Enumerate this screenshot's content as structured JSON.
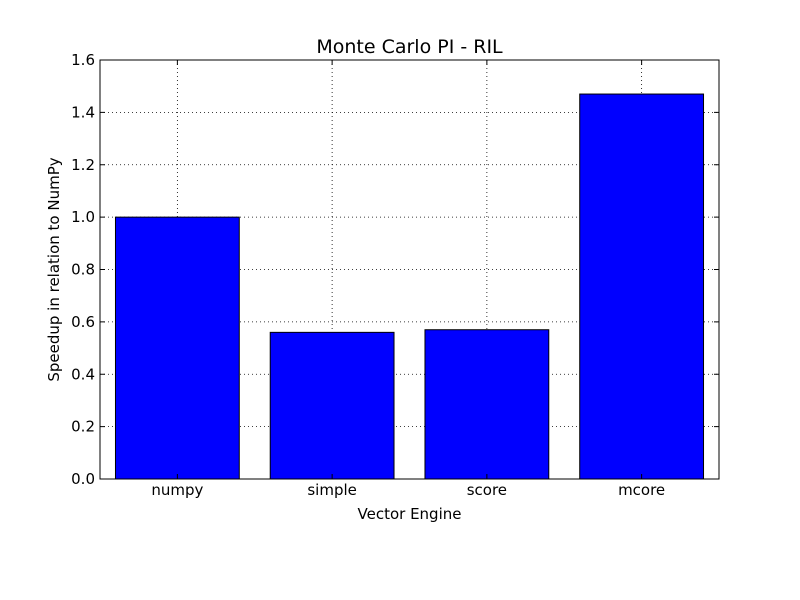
{
  "chart_data": {
    "type": "bar",
    "title": "Monte Carlo PI - RIL",
    "xlabel": "Vector Engine",
    "ylabel": "Speedup in relation to NumPy",
    "categories": [
      "numpy",
      "simple",
      "score",
      "mcore"
    ],
    "values": [
      1.0,
      0.56,
      0.57,
      1.47
    ],
    "ylim": [
      0,
      1.6
    ],
    "yticks": [
      "0.0",
      "0.2",
      "0.4",
      "0.6",
      "0.8",
      "1.0",
      "1.2",
      "1.4",
      "1.6"
    ],
    "grid": true,
    "bar_color": "#0000ff",
    "edge_color": "#000000"
  }
}
